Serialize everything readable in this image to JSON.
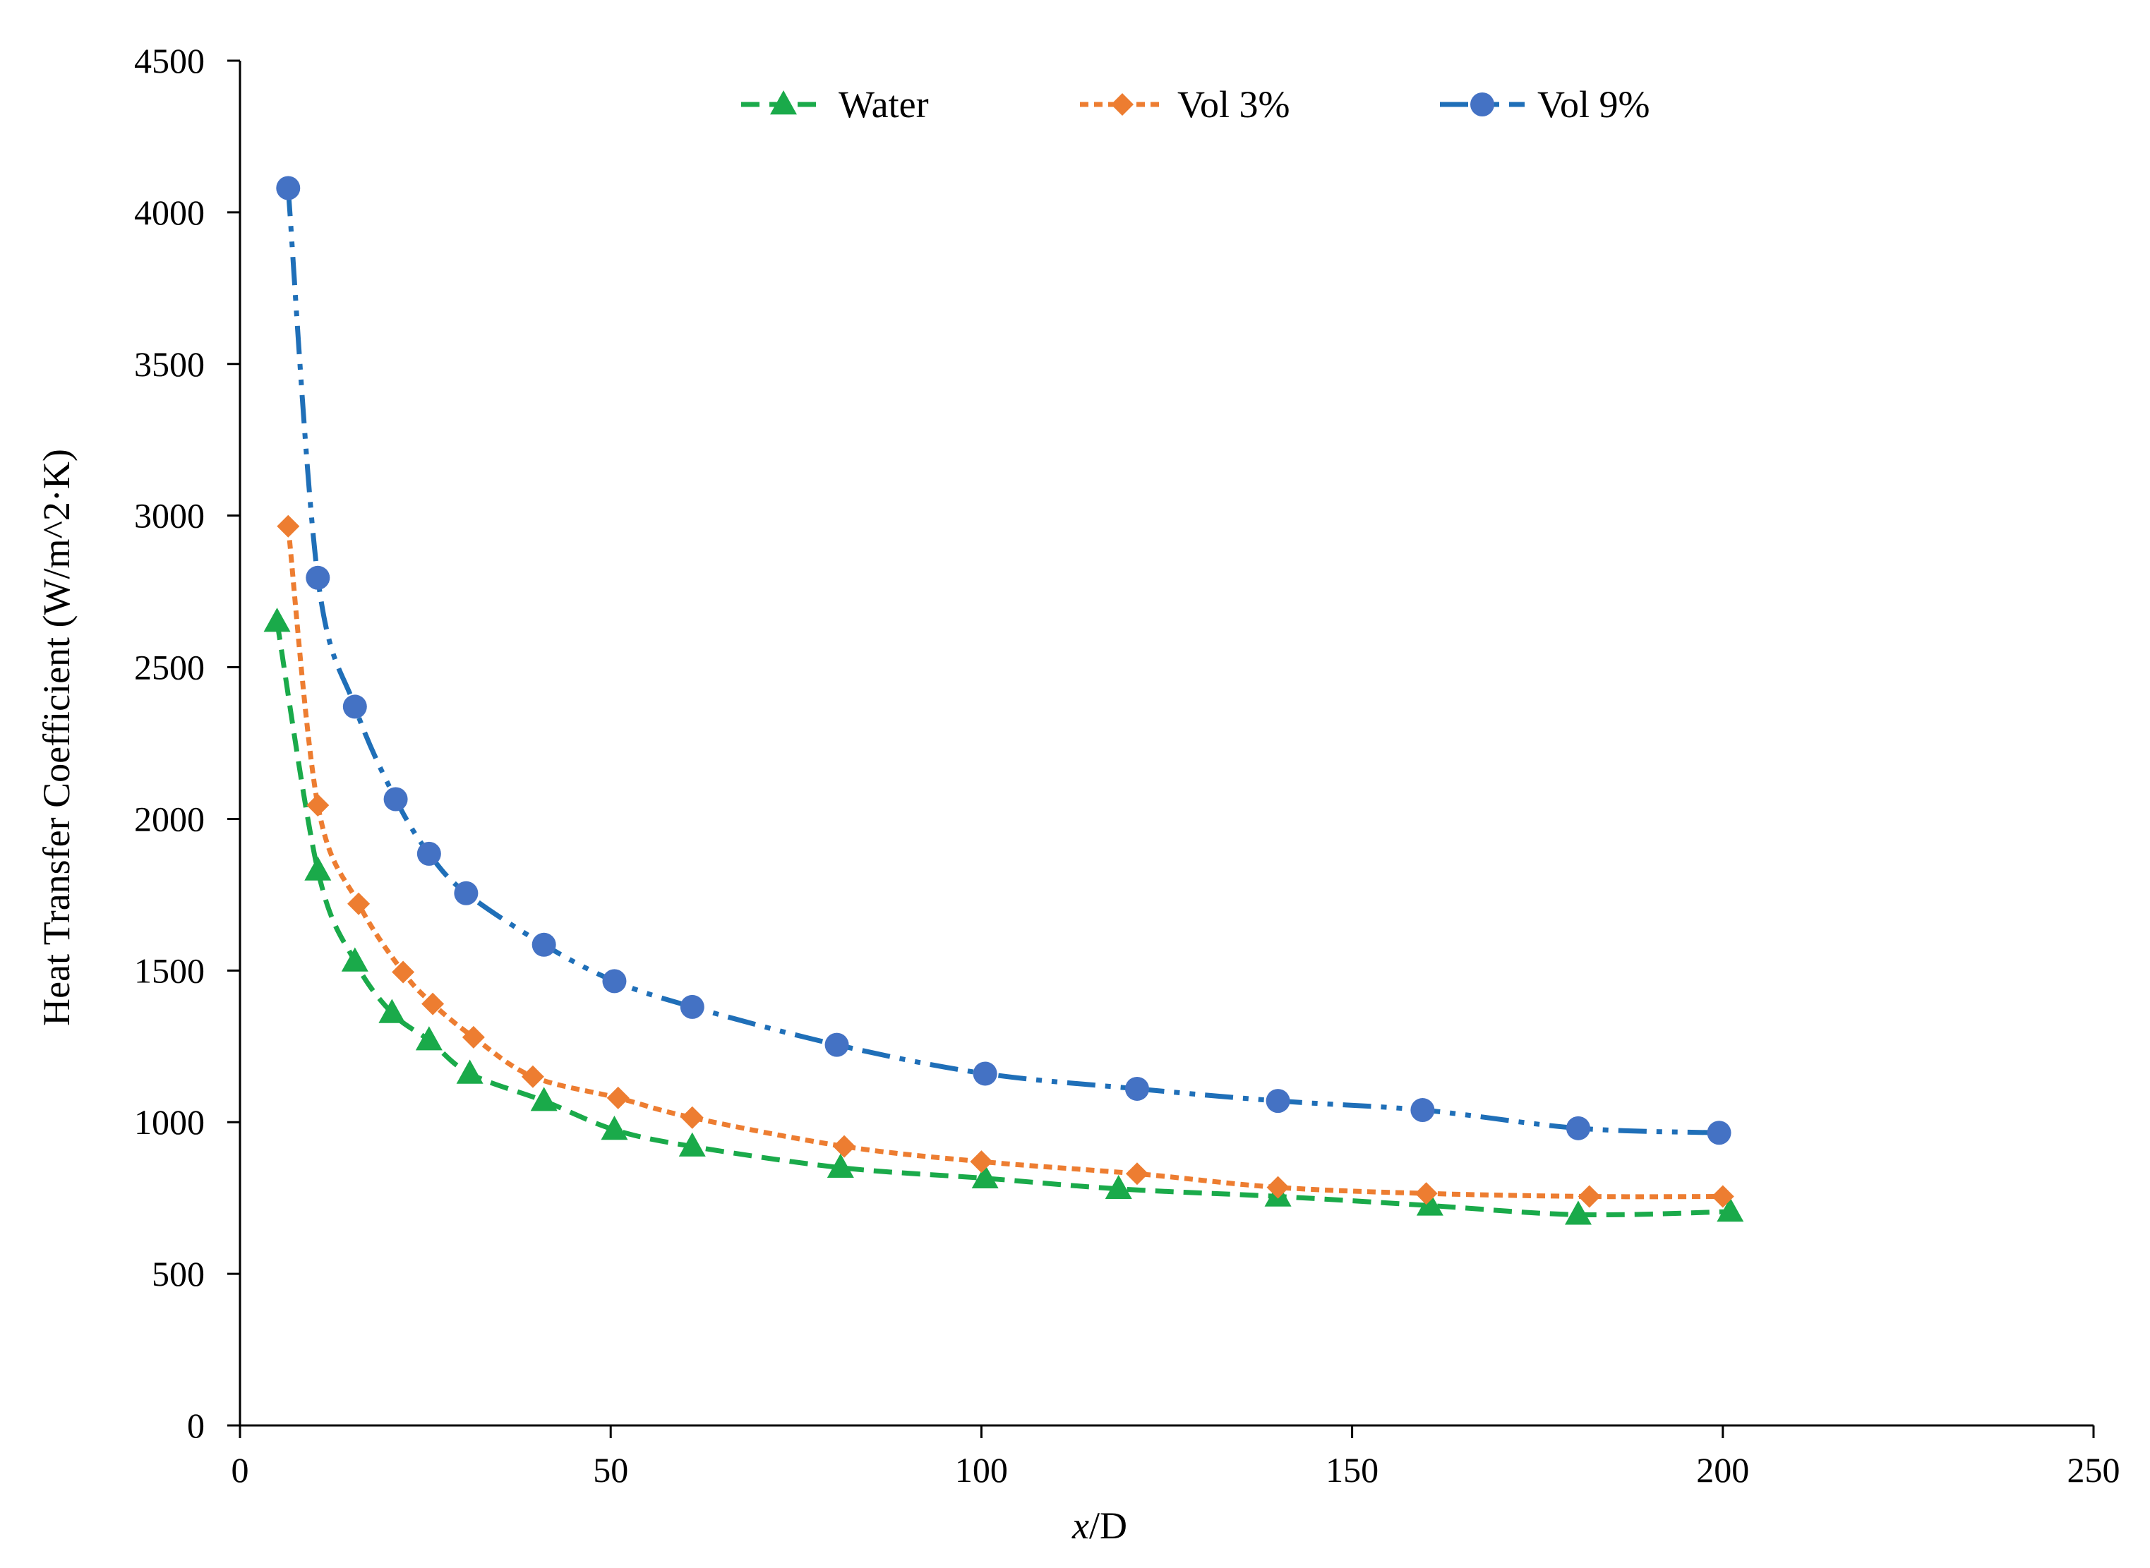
{
  "chart_data": {
    "type": "line",
    "title": "",
    "xlabel_italic": "x",
    "xlabel_rest": "/D",
    "ylabel": "Heat Transfer Coefficient (W/m^2·K)",
    "xlim": [
      0,
      250
    ],
    "ylim": [
      0,
      4500
    ],
    "xticks": [
      0,
      50,
      100,
      150,
      200,
      250
    ],
    "yticks": [
      0,
      500,
      1000,
      1500,
      2000,
      2500,
      3000,
      3500,
      4000,
      4500
    ],
    "grid": false,
    "legend_position": "top",
    "series": [
      {
        "name": "Water",
        "color": "#1aaa4a",
        "marker": "triangle",
        "line_style": "dashed",
        "x": [
          5,
          10.5,
          15.5,
          20.5,
          25.5,
          31,
          41,
          50.5,
          61,
          81,
          100.5,
          118.5,
          140,
          160.5,
          180.5,
          201
        ],
        "y": [
          2650,
          1830,
          1530,
          1360,
          1270,
          1160,
          1070,
          975,
          920,
          850,
          815,
          780,
          755,
          725,
          695,
          705
        ]
      },
      {
        "name": "Vol 3%",
        "color": "#ed7d31",
        "marker": "diamond",
        "line_style": "dotted",
        "x": [
          6.5,
          10.5,
          16,
          22,
          26,
          31.5,
          39.5,
          51,
          61,
          81.5,
          100,
          121,
          140,
          160,
          182,
          200
        ],
        "y": [
          2965,
          2045,
          1720,
          1495,
          1390,
          1280,
          1150,
          1080,
          1015,
          920,
          870,
          830,
          785,
          765,
          755,
          755
        ]
      },
      {
        "name": "Vol 9%",
        "color": "#1f6fb8",
        "marker_color": "#4472c4",
        "marker": "circle",
        "line_style": "dash-dot-dot",
        "x": [
          6.5,
          10.5,
          15.5,
          21,
          25.5,
          30.5,
          41,
          50.5,
          61,
          80.5,
          100.5,
          121,
          140,
          159.5,
          180.5,
          199.5
        ],
        "y": [
          4080,
          2795,
          2370,
          2065,
          1885,
          1755,
          1585,
          1465,
          1380,
          1255,
          1160,
          1110,
          1070,
          1040,
          980,
          965
        ]
      }
    ]
  }
}
